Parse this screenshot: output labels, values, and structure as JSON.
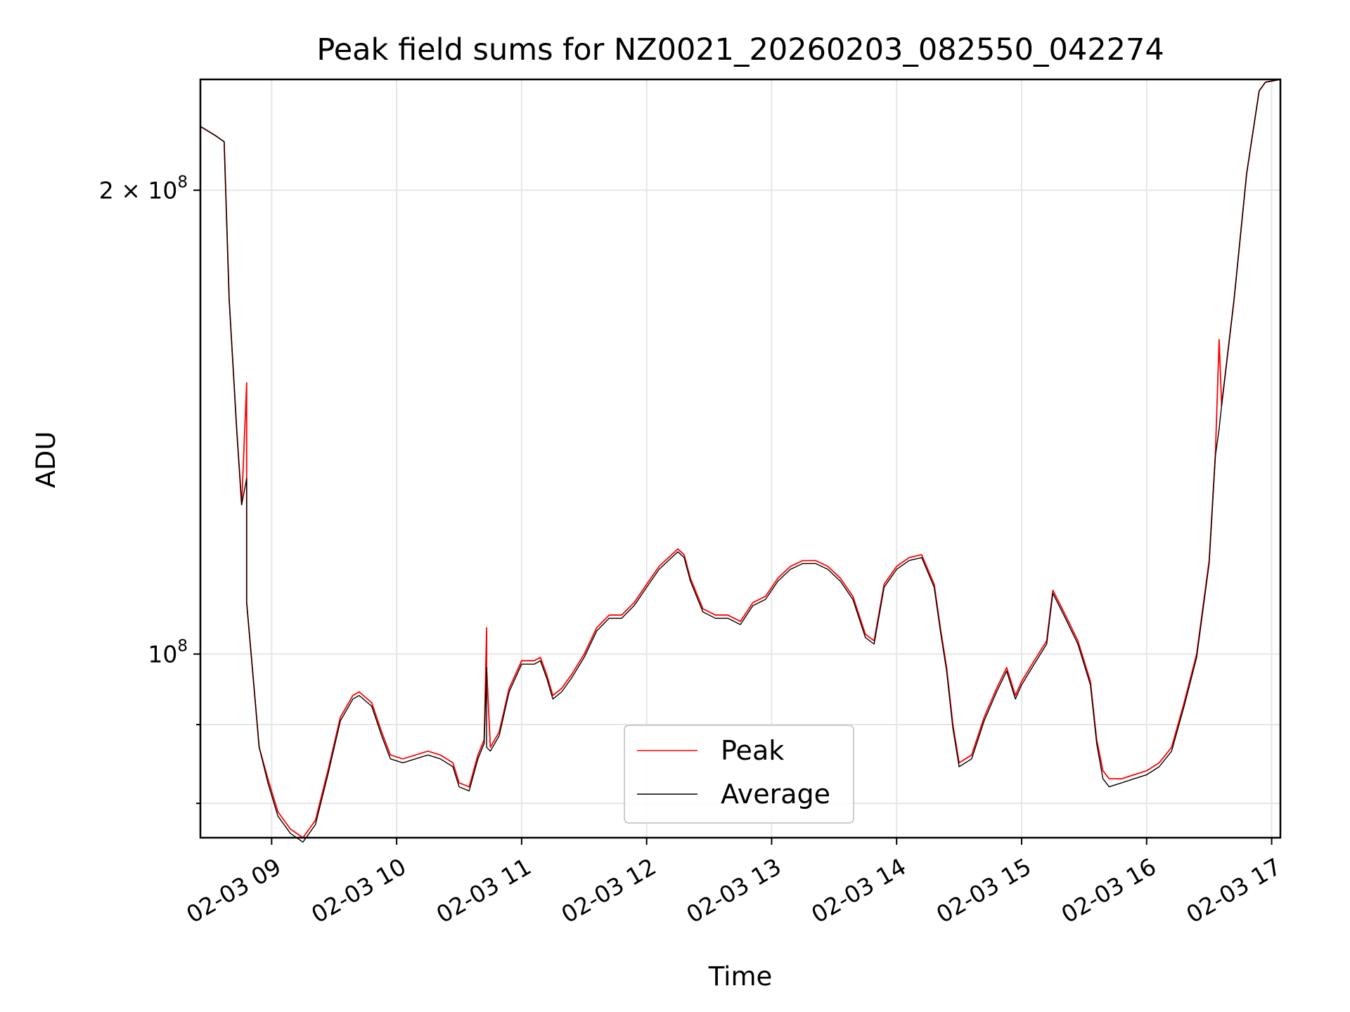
{
  "chart_data": {
    "type": "line",
    "title": "Peak field sums for NZ0021_20260203_082550_042274",
    "xlabel": "Time",
    "ylabel": "ADU",
    "x_unit": "hour of 2026-02-03",
    "xlim": [
      8.43,
      17.07
    ],
    "ylim": [
      76000000,
      236000000
    ],
    "yscale": "log",
    "grid": true,
    "legend_position": "lower-center",
    "x_ticks": [
      {
        "value": 9,
        "label": "02-03 09"
      },
      {
        "value": 10,
        "label": "02-03 10"
      },
      {
        "value": 11,
        "label": "02-03 11"
      },
      {
        "value": 12,
        "label": "02-03 12"
      },
      {
        "value": 13,
        "label": "02-03 13"
      },
      {
        "value": 14,
        "label": "02-03 14"
      },
      {
        "value": 15,
        "label": "02-03 15"
      },
      {
        "value": 16,
        "label": "02-03 16"
      },
      {
        "value": 17,
        "label": "02-03 17"
      }
    ],
    "y_major_ticks": [
      {
        "value": 100000000,
        "base": "10",
        "exp": "8",
        "mant": ""
      },
      {
        "value": 200000000,
        "base": "10",
        "exp": "8",
        "mant": "2 × "
      }
    ],
    "y_minor_ticks": [
      80000000,
      90000000
    ],
    "series": [
      {
        "name": "Peak",
        "color": "#ff0000",
        "x": [
          8.43,
          8.55,
          8.62,
          8.66,
          8.72,
          8.76,
          8.8,
          8.8,
          8.85,
          8.9,
          8.97,
          9.05,
          9.15,
          9.25,
          9.35,
          9.45,
          9.55,
          9.65,
          9.7,
          9.8,
          9.88,
          9.95,
          10.05,
          10.15,
          10.25,
          10.35,
          10.45,
          10.5,
          10.58,
          10.65,
          10.7,
          10.72,
          10.72,
          10.75,
          10.82,
          10.9,
          11.0,
          11.1,
          11.15,
          11.2,
          11.25,
          11.32,
          11.4,
          11.5,
          11.6,
          11.7,
          11.75,
          11.8,
          11.9,
          12.0,
          12.1,
          12.2,
          12.25,
          12.3,
          12.35,
          12.45,
          12.55,
          12.65,
          12.75,
          12.85,
          12.95,
          13.05,
          13.15,
          13.25,
          13.35,
          13.45,
          13.55,
          13.65,
          13.75,
          13.82,
          13.9,
          14.0,
          14.1,
          14.2,
          14.3,
          14.35,
          14.4,
          14.45,
          14.5,
          14.6,
          14.7,
          14.8,
          14.88,
          14.95,
          15.0,
          15.1,
          15.2,
          15.25,
          15.35,
          15.45,
          15.55,
          15.6,
          15.65,
          15.7,
          15.8,
          15.9,
          16.0,
          16.1,
          16.2,
          16.3,
          16.4,
          16.5,
          16.55,
          16.58,
          16.6,
          16.7,
          16.8,
          16.9,
          16.95,
          17.07
        ],
        "values": [
          220000000,
          217000000,
          215000000,
          170000000,
          140000000,
          125000000,
          150000000,
          108000000,
          97000000,
          87000000,
          83000000,
          79000000,
          77000000,
          76000000,
          78000000,
          84000000,
          91000000,
          94000000,
          94500000,
          93000000,
          89000000,
          86000000,
          85500000,
          86000000,
          86500000,
          86000000,
          85000000,
          82500000,
          82000000,
          86000000,
          88000000,
          104000000,
          98000000,
          87000000,
          89000000,
          95000000,
          99000000,
          99000000,
          99500000,
          97000000,
          94000000,
          95000000,
          97000000,
          100000000,
          104000000,
          106000000,
          106000000,
          106000000,
          108000000,
          111000000,
          114000000,
          116000000,
          117000000,
          116000000,
          112000000,
          107000000,
          106000000,
          106000000,
          105000000,
          108000000,
          109000000,
          112000000,
          114000000,
          115000000,
          115000000,
          114000000,
          112000000,
          109000000,
          103000000,
          102000000,
          111000000,
          114000000,
          115500000,
          116000000,
          111000000,
          104000000,
          98000000,
          90000000,
          85000000,
          86000000,
          91000000,
          95000000,
          98000000,
          94000000,
          96000000,
          99000000,
          102000000,
          110000000,
          106000000,
          102000000,
          96000000,
          88000000,
          84000000,
          83000000,
          83000000,
          83500000,
          84000000,
          85000000,
          87000000,
          93000000,
          100000000,
          115000000,
          135000000,
          160000000,
          145000000,
          170000000,
          205000000,
          232000000,
          235000000,
          236000000
        ]
      },
      {
        "name": "Average",
        "color": "#000000",
        "x": [
          8.43,
          8.55,
          8.62,
          8.66,
          8.72,
          8.76,
          8.8,
          8.8,
          8.85,
          8.9,
          8.97,
          9.05,
          9.15,
          9.25,
          9.35,
          9.45,
          9.55,
          9.65,
          9.7,
          9.8,
          9.88,
          9.95,
          10.05,
          10.15,
          10.25,
          10.35,
          10.45,
          10.5,
          10.58,
          10.65,
          10.7,
          10.72,
          10.72,
          10.75,
          10.82,
          10.9,
          11.0,
          11.1,
          11.15,
          11.2,
          11.25,
          11.32,
          11.4,
          11.5,
          11.6,
          11.7,
          11.75,
          11.8,
          11.9,
          12.0,
          12.1,
          12.2,
          12.25,
          12.3,
          12.35,
          12.45,
          12.55,
          12.65,
          12.75,
          12.85,
          12.95,
          13.05,
          13.15,
          13.25,
          13.35,
          13.45,
          13.55,
          13.65,
          13.75,
          13.82,
          13.9,
          14.0,
          14.1,
          14.2,
          14.3,
          14.35,
          14.4,
          14.45,
          14.5,
          14.6,
          14.7,
          14.8,
          14.88,
          14.95,
          15.0,
          15.1,
          15.2,
          15.25,
          15.35,
          15.45,
          15.55,
          15.6,
          15.65,
          15.7,
          15.8,
          15.9,
          16.0,
          16.1,
          16.2,
          16.3,
          16.4,
          16.5,
          16.55,
          16.58,
          16.6,
          16.7,
          16.8,
          16.9,
          16.95,
          17.07
        ],
        "values": [
          220000000,
          217000000,
          215000000,
          170000000,
          140000000,
          125000000,
          130000000,
          108000000,
          97000000,
          87000000,
          82500000,
          78500000,
          76500000,
          75500000,
          77500000,
          83500000,
          90500000,
          93500000,
          94000000,
          92500000,
          88500000,
          85500000,
          85000000,
          85500000,
          86000000,
          85500000,
          84500000,
          82000000,
          81500000,
          85500000,
          87500000,
          98000000,
          87000000,
          86500000,
          88500000,
          94500000,
          98500000,
          98500000,
          99000000,
          96500000,
          93500000,
          94500000,
          96500000,
          99500000,
          103500000,
          105500000,
          105500000,
          105500000,
          107500000,
          110500000,
          113500000,
          115500000,
          116500000,
          115500000,
          111500000,
          106500000,
          105500000,
          105500000,
          104500000,
          107500000,
          108500000,
          111500000,
          113500000,
          114500000,
          114500000,
          113500000,
          111500000,
          108500000,
          102500000,
          101500000,
          110500000,
          113500000,
          115000000,
          115500000,
          110500000,
          103500000,
          97500000,
          89500000,
          84500000,
          85500000,
          90500000,
          94500000,
          97500000,
          93500000,
          95500000,
          98500000,
          101500000,
          109500000,
          105500000,
          101500000,
          95500000,
          87500000,
          83000000,
          82000000,
          82500000,
          83000000,
          83500000,
          84500000,
          86500000,
          92500000,
          99500000,
          114500000,
          134500000,
          140000000,
          145000000,
          170000000,
          205000000,
          232000000,
          235000000,
          236000000
        ]
      }
    ]
  }
}
